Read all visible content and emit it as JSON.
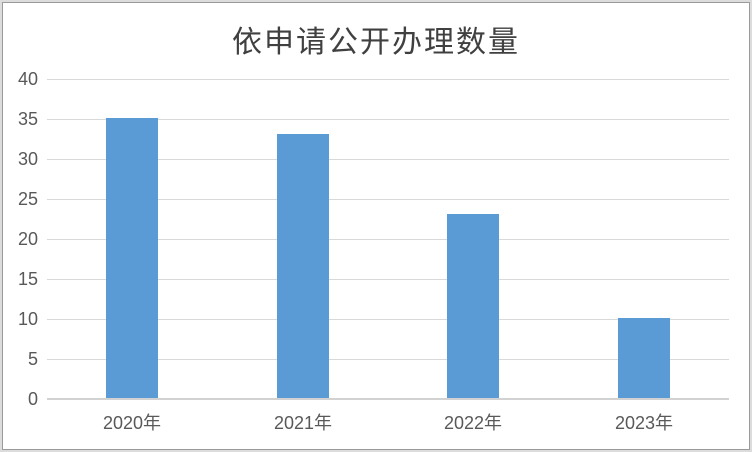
{
  "chart_data": {
    "type": "bar",
    "title": "依申请公开办理数量",
    "categories": [
      "2020年",
      "2021年",
      "2022年",
      "2023年"
    ],
    "values": [
      35,
      33,
      23,
      10
    ],
    "xlabel": "",
    "ylabel": "",
    "ylim": [
      0,
      40
    ],
    "ytick_step": 5,
    "yticks": [
      40,
      35,
      30,
      25,
      20,
      15,
      10,
      5,
      0
    ],
    "grid": true,
    "legend_position": "none",
    "bar_color": "#5B9BD5",
    "gridline_color": "#D9D9D9",
    "axis_line_color": "#D2D2D2",
    "tick_label_color": "#595959",
    "title_color": "#404040"
  }
}
